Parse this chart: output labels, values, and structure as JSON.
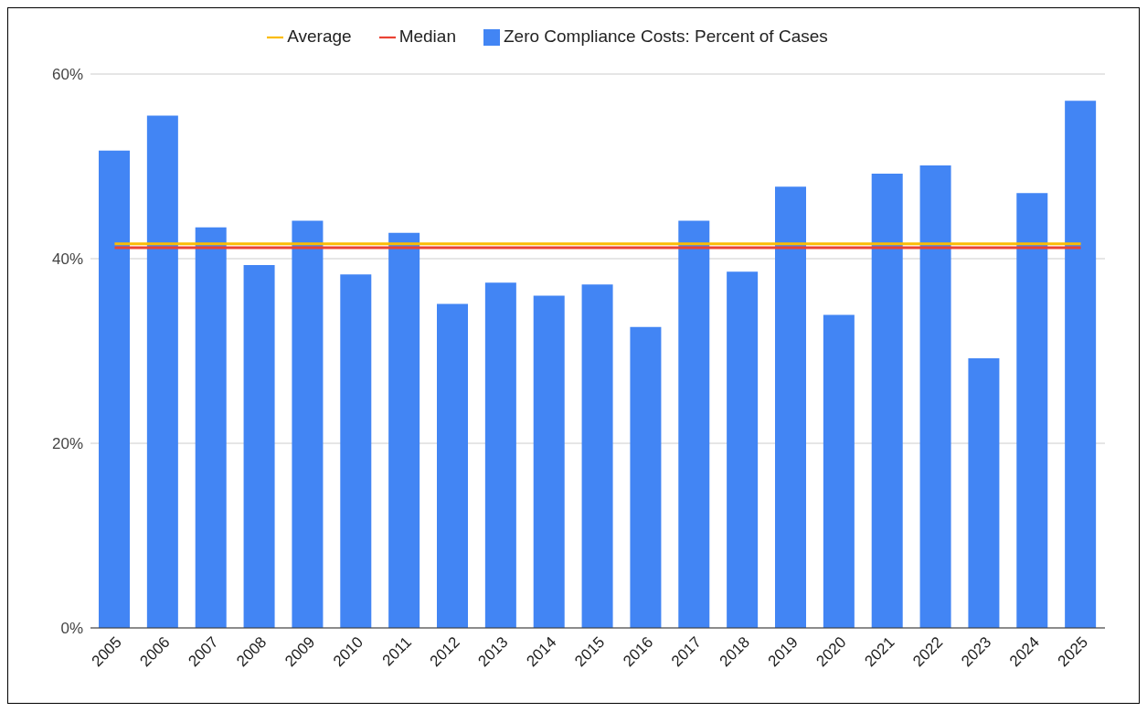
{
  "chart_data": {
    "type": "bar",
    "categories": [
      "2005",
      "2006",
      "2007",
      "2008",
      "2009",
      "2010",
      "2011",
      "2012",
      "2013",
      "2014",
      "2015",
      "2016",
      "2017",
      "2018",
      "2019",
      "2020",
      "2021",
      "2022",
      "2023",
      "2024",
      "2025"
    ],
    "series": [
      {
        "name": "Zero Compliance Costs: Percent of Cases",
        "color": "#4285f4",
        "values": [
          51.7,
          55.5,
          43.4,
          39.3,
          44.1,
          38.3,
          42.8,
          35.1,
          37.4,
          36.0,
          37.2,
          32.6,
          44.1,
          38.6,
          47.8,
          33.9,
          49.2,
          50.1,
          29.2,
          47.1,
          57.1
        ]
      },
      {
        "name": "Median",
        "type": "line",
        "color": "#ea4335",
        "values": [
          41.2,
          41.2,
          41.2,
          41.2,
          41.2,
          41.2,
          41.2,
          41.2,
          41.2,
          41.2,
          41.2,
          41.2,
          41.2,
          41.2,
          41.2,
          41.2,
          41.2,
          41.2,
          41.2,
          41.2,
          41.2
        ]
      },
      {
        "name": "Average",
        "type": "line",
        "color": "#fbbc04",
        "values": [
          41.6,
          41.6,
          41.6,
          41.6,
          41.6,
          41.6,
          41.6,
          41.6,
          41.6,
          41.6,
          41.6,
          41.6,
          41.6,
          41.6,
          41.6,
          41.6,
          41.6,
          41.6,
          41.6,
          41.6,
          41.6
        ]
      }
    ],
    "ylim": [
      0,
      60
    ],
    "yticks": [
      {
        "value": 0,
        "label": "0%"
      },
      {
        "value": 20,
        "label": "20%"
      },
      {
        "value": 40,
        "label": "40%"
      },
      {
        "value": 60,
        "label": "60%"
      }
    ],
    "grid": "y",
    "legend": "top"
  }
}
